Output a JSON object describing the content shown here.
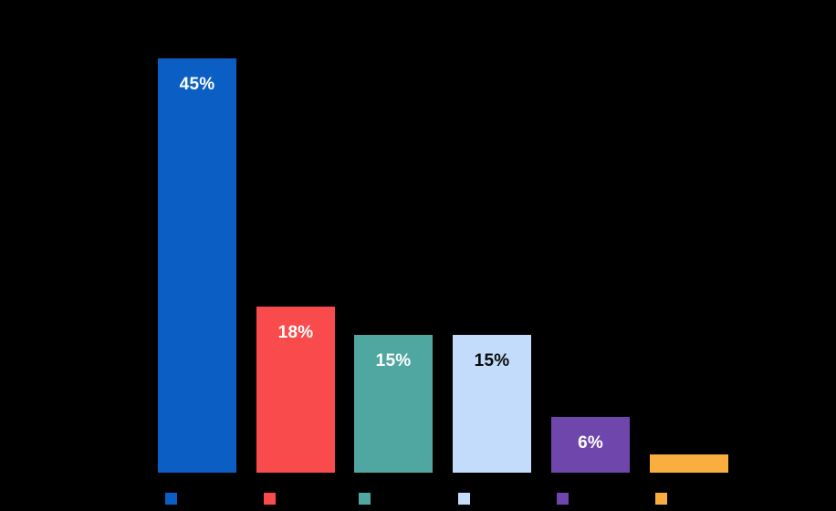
{
  "chart": {
    "background": "#000000"
  },
  "chart_data": {
    "type": "bar",
    "title": "",
    "xlabel": "",
    "ylabel": "",
    "unit": "%",
    "ylim": [
      0,
      50
    ],
    "grid": false,
    "axis_lines_visible": false,
    "legend_position": "bottom",
    "categories": [
      "",
      "",
      "",
      "",
      "",
      ""
    ],
    "values": [
      45,
      18,
      15,
      15,
      6,
      2
    ],
    "bars": [
      {
        "value": 45,
        "data_label": "45%",
        "color": "#0B5FC4",
        "label_color": "#FFFFFF"
      },
      {
        "value": 18,
        "data_label": "18%",
        "color": "#F94B4B",
        "label_color": "#FFFFFF"
      },
      {
        "value": 15,
        "data_label": "15%",
        "color": "#50A7A2",
        "label_color": "#FFFFFF"
      },
      {
        "value": 15,
        "data_label": "15%",
        "color": "#C3DCFB",
        "label_color": "#0B0B0B"
      },
      {
        "value": 6,
        "data_label": "6%",
        "color": "#6F47AC",
        "label_color": "#FFFFFF"
      },
      {
        "value": 2,
        "data_label": "",
        "color": "#F9AE3D",
        "label_color": "#FFFFFF"
      }
    ],
    "legend": [
      {
        "swatch_color": "#0B5FC4",
        "label": ""
      },
      {
        "swatch_color": "#F94B4B",
        "label": ""
      },
      {
        "swatch_color": "#50A7A2",
        "label": ""
      },
      {
        "swatch_color": "#C3DCFB",
        "label": ""
      },
      {
        "swatch_color": "#6F47AC",
        "label": ""
      },
      {
        "swatch_color": "#F9AE3D",
        "label": ""
      }
    ]
  }
}
